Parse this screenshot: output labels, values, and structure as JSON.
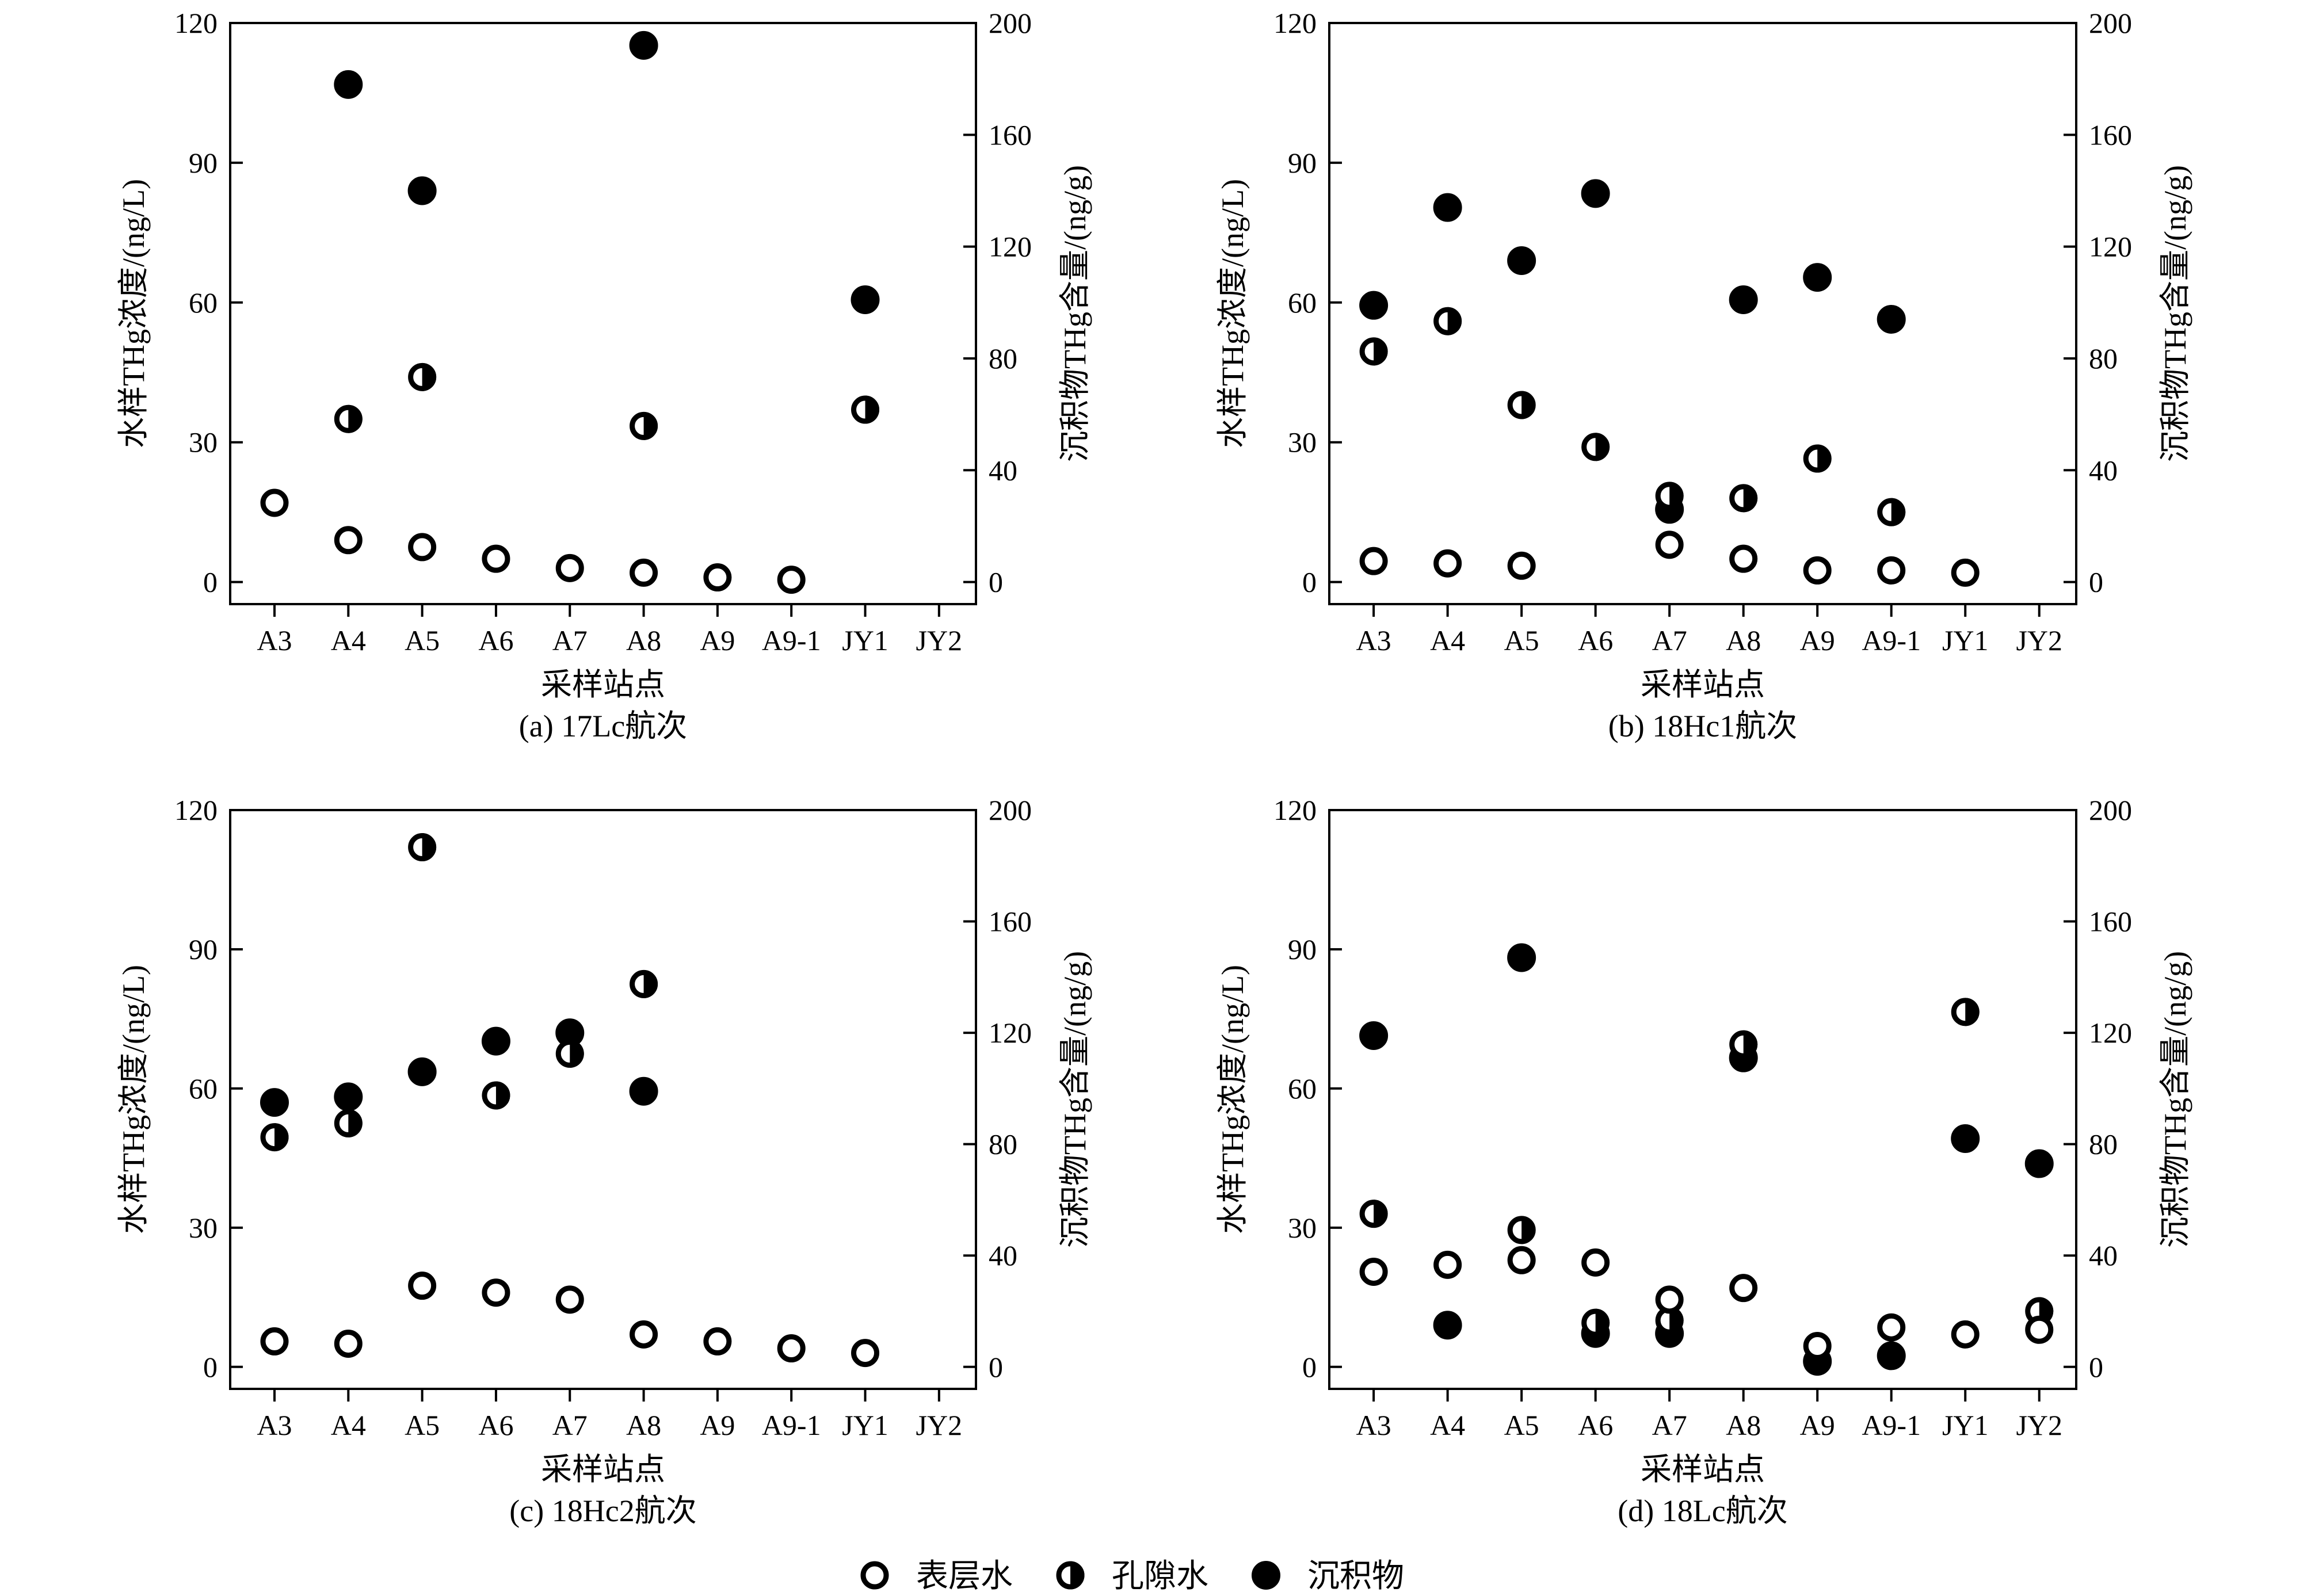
{
  "chart_data": [
    {
      "type": "scatter",
      "panel_label": "(a) 17Lc航次",
      "xlabel": "采样站点",
      "ylabel_left": "水样THg浓度/(ng/L)",
      "ylabel_right": "沉积物THg含量/(ng/g)",
      "categories": [
        "A3",
        "A4",
        "A5",
        "A6",
        "A7",
        "A8",
        "A9",
        "A9-1",
        "JY1",
        "JY2"
      ],
      "ylim_left": [
        0,
        120
      ],
      "ylim_right": [
        0,
        200
      ],
      "left_ticks": [
        0,
        30,
        60,
        90,
        120
      ],
      "right_ticks": [
        0,
        40,
        80,
        120,
        160,
        200
      ],
      "grid": false,
      "series": [
        {
          "name": "表层水",
          "axis": "left",
          "marker": "open",
          "values": [
            17,
            9,
            7.5,
            5,
            3,
            2,
            1,
            0.5,
            null,
            null
          ]
        },
        {
          "name": "孔隙水",
          "axis": "left",
          "marker": "half",
          "values": [
            null,
            35,
            44,
            null,
            null,
            33.5,
            null,
            null,
            37,
            null
          ]
        },
        {
          "name": "沉积物",
          "axis": "right",
          "marker": "filled",
          "values": [
            null,
            178,
            140,
            null,
            null,
            192,
            null,
            null,
            101,
            null
          ]
        }
      ]
    },
    {
      "type": "scatter",
      "panel_label": "(b) 18Hc1航次",
      "xlabel": "采样站点",
      "ylabel_left": "水样THg浓度/(ng/L)",
      "ylabel_right": "沉积物THg含量/(ng/g)",
      "categories": [
        "A3",
        "A4",
        "A5",
        "A6",
        "A7",
        "A8",
        "A9",
        "A9-1",
        "JY1",
        "JY2"
      ],
      "ylim_left": [
        0,
        120
      ],
      "ylim_right": [
        0,
        200
      ],
      "left_ticks": [
        0,
        30,
        60,
        90,
        120
      ],
      "right_ticks": [
        0,
        40,
        80,
        120,
        160,
        200
      ],
      "grid": false,
      "series": [
        {
          "name": "表层水",
          "axis": "left",
          "marker": "open",
          "values": [
            4.5,
            4,
            3.5,
            null,
            8,
            5,
            2.5,
            2.5,
            2,
            null
          ]
        },
        {
          "name": "孔隙水",
          "axis": "left",
          "marker": "half",
          "values": [
            49.5,
            56,
            38,
            29,
            18.5,
            18,
            26.5,
            15,
            null,
            null
          ]
        },
        {
          "name": "沉积物",
          "axis": "right",
          "marker": "filled",
          "values": [
            99,
            134,
            115,
            139,
            26,
            101,
            109,
            94,
            null,
            null
          ]
        }
      ]
    },
    {
      "type": "scatter",
      "panel_label": "(c) 18Hc2航次",
      "xlabel": "采样站点",
      "ylabel_left": "水样THg浓度/(ng/L)",
      "ylabel_right": "沉积物THg含量/(ng/g)",
      "categories": [
        "A3",
        "A4",
        "A5",
        "A6",
        "A7",
        "A8",
        "A9",
        "A9-1",
        "JY1",
        "JY2"
      ],
      "ylim_left": [
        0,
        120
      ],
      "ylim_right": [
        0,
        200
      ],
      "left_ticks": [
        0,
        30,
        60,
        90,
        120
      ],
      "right_ticks": [
        0,
        40,
        80,
        120,
        160,
        200
      ],
      "grid": false,
      "series": [
        {
          "name": "表层水",
          "axis": "left",
          "marker": "open",
          "values": [
            5.5,
            5,
            17.5,
            16,
            14.5,
            7,
            5.5,
            4,
            3,
            null
          ]
        },
        {
          "name": "孔隙水",
          "axis": "left",
          "marker": "half",
          "values": [
            49.5,
            52.5,
            112,
            58.5,
            67.5,
            82.5,
            null,
            null,
            null,
            null
          ]
        },
        {
          "name": "沉积物",
          "axis": "right",
          "marker": "filled",
          "values": [
            95,
            97,
            106,
            117,
            120,
            99,
            null,
            null,
            null,
            null
          ]
        }
      ]
    },
    {
      "type": "scatter",
      "panel_label": "(d) 18Lc航次",
      "xlabel": "采样站点",
      "ylabel_left": "水样THg浓度/(ng/L)",
      "ylabel_right": "沉积物THg含量/(ng/g)",
      "categories": [
        "A3",
        "A4",
        "A5",
        "A6",
        "A7",
        "A8",
        "A9",
        "A9-1",
        "JY1",
        "JY2"
      ],
      "ylim_left": [
        0,
        120
      ],
      "ylim_right": [
        0,
        200
      ],
      "left_ticks": [
        0,
        30,
        60,
        90,
        120
      ],
      "right_ticks": [
        0,
        40,
        80,
        120,
        160,
        200
      ],
      "grid": false,
      "series": [
        {
          "name": "表层水",
          "axis": "left",
          "marker": "open",
          "values": [
            20.5,
            22,
            23,
            22.5,
            14.5,
            17,
            4.5,
            8.5,
            7,
            8
          ]
        },
        {
          "name": "孔隙水",
          "axis": "left",
          "marker": "half",
          "values": [
            33,
            null,
            29.5,
            9.5,
            10,
            69.5,
            null,
            null,
            76.5,
            12
          ]
        },
        {
          "name": "沉积物",
          "axis": "right",
          "marker": "filled",
          "values": [
            119,
            15,
            147,
            12,
            12,
            111,
            2,
            4,
            82,
            73
          ]
        }
      ]
    }
  ],
  "legend": [
    {
      "label": "表层水",
      "marker": "open"
    },
    {
      "label": "孔隙水",
      "marker": "half"
    },
    {
      "label": "沉积物",
      "marker": "filled"
    }
  ]
}
